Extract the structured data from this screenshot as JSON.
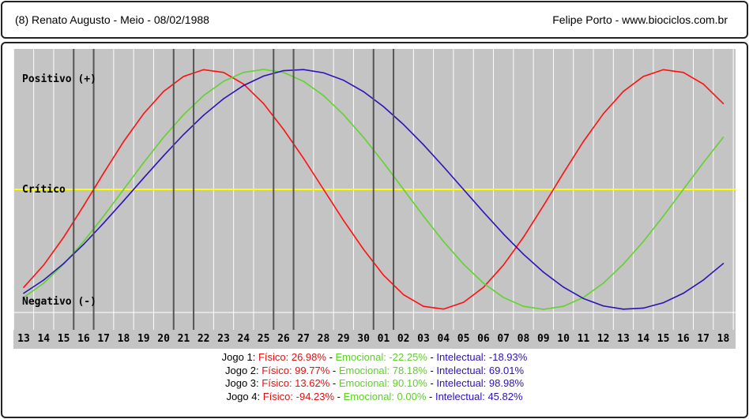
{
  "header": {
    "left_text": "(8)  Renato Augusto - Meio -  08/02/1988",
    "right_text": "Felipe Porto   -   www.biociclos.com.br"
  },
  "chart_data": {
    "type": "line",
    "labels": {
      "positive": "Positivo (+)",
      "critical": "Crítico",
      "negative": "Negativo (-)"
    },
    "x": [
      "13",
      "14",
      "15",
      "16",
      "17",
      "18",
      "19",
      "20",
      "21",
      "22",
      "23",
      "24",
      "25",
      "26",
      "27",
      "28",
      "29",
      "30",
      "01",
      "02",
      "03",
      "04",
      "05",
      "06",
      "07",
      "08",
      "09",
      "10",
      "11",
      "12",
      "13",
      "14",
      "15",
      "16",
      "17",
      "18"
    ],
    "ylim": [
      -100,
      100
    ],
    "series": [
      {
        "color": "#ff1010",
        "values": [
          -81.7,
          -63.1,
          -39.9,
          -13.6,
          13.6,
          39.9,
          63.1,
          81.7,
          94.2,
          99.8,
          97.5,
          87.8,
          71.5,
          50.0,
          25.9,
          0.0,
          -25.9,
          -50.0,
          -71.5,
          -87.8,
          -97.5,
          -99.8,
          -94.2,
          -81.7,
          -63.1,
          -39.9,
          -13.6,
          13.6,
          39.9,
          63.1,
          81.7,
          94.2,
          99.8,
          97.5,
          87.8,
          71.5
        ]
      },
      {
        "color": "#62d22c",
        "values": [
          -90.1,
          -78.2,
          -62.3,
          -43.4,
          -22.3,
          0.0,
          22.3,
          43.4,
          62.3,
          78.2,
          90.1,
          97.5,
          100.0,
          97.5,
          90.1,
          78.2,
          62.3,
          43.4,
          22.3,
          0.0,
          -22.3,
          -43.4,
          -62.3,
          -78.2,
          -90.1,
          -97.5,
          -100.0,
          -97.5,
          -90.1,
          -78.2,
          -62.3,
          -43.4,
          -22.3,
          0.0,
          22.3,
          43.4
        ]
      },
      {
        "color": "#2a12b8",
        "values": [
          -86.6,
          -75.6,
          -61.8,
          -45.8,
          -28.1,
          -9.5,
          9.5,
          28.1,
          45.8,
          61.8,
          75.6,
          86.6,
          94.5,
          99.0,
          99.9,
          97.2,
          91.0,
          81.5,
          69.0,
          54.1,
          37.2,
          18.9,
          0.0,
          -18.9,
          -37.2,
          -54.1,
          -69.0,
          -81.5,
          -91.0,
          -97.2,
          -99.9,
          -99.0,
          -94.5,
          -86.6,
          -75.6,
          -61.8
        ]
      }
    ],
    "markers": [
      "16",
      "17",
      "21",
      "22",
      "26",
      "27",
      "01",
      "02"
    ],
    "grid": true,
    "colors": {
      "background": "#c4c4c4",
      "grid": "#ffffff",
      "critical_line": "#ffff00",
      "marker": "#555555"
    }
  },
  "legend": [
    {
      "label": "Jogo 1:",
      "fisico": "Físico: 26.98%",
      "emocional": "Emocional: -22.25%",
      "intelectual": "Intelectual: -18.93%"
    },
    {
      "label": "Jogo 2:",
      "fisico": "Físico: 99.77%",
      "emocional": "Emocional: 78.18%",
      "intelectual": "Intelectual: 69.01%"
    },
    {
      "label": "Jogo 3:",
      "fisico": "Físico: 13.62%",
      "emocional": "Emocional: 90.10%",
      "intelectual": "Intelectual: 98.98%"
    },
    {
      "label": "Jogo 4:",
      "fisico": "Físico: -94.23%",
      "emocional": "Emocional: 0.00%",
      "intelectual": "Intelectual: 45.82%"
    }
  ]
}
